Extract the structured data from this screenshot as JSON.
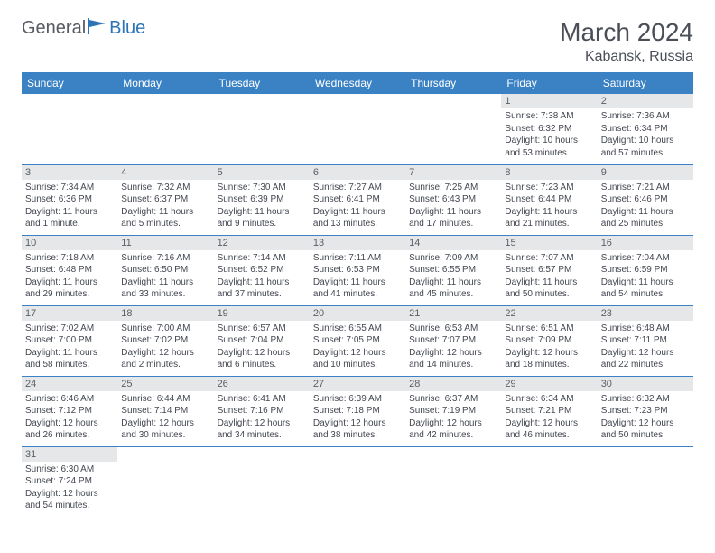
{
  "logo": {
    "text1": "General",
    "text2": "Blue"
  },
  "title": "March 2024",
  "location": "Kabansk, Russia",
  "colors": {
    "header_bg": "#3b82c4",
    "header_text": "#ffffff",
    "daynum_bg": "#e6e7e9",
    "text": "#424750",
    "title_text": "#4a4f57",
    "logo_gray": "#555a60",
    "logo_blue": "#2e74b5",
    "row_border": "#3b82c4"
  },
  "dayNames": [
    "Sunday",
    "Monday",
    "Tuesday",
    "Wednesday",
    "Thursday",
    "Friday",
    "Saturday"
  ],
  "weeks": [
    [
      {
        "n": "",
        "sr": "",
        "ss": "",
        "dl": ""
      },
      {
        "n": "",
        "sr": "",
        "ss": "",
        "dl": ""
      },
      {
        "n": "",
        "sr": "",
        "ss": "",
        "dl": ""
      },
      {
        "n": "",
        "sr": "",
        "ss": "",
        "dl": ""
      },
      {
        "n": "",
        "sr": "",
        "ss": "",
        "dl": ""
      },
      {
        "n": "1",
        "sr": "Sunrise: 7:38 AM",
        "ss": "Sunset: 6:32 PM",
        "dl": "Daylight: 10 hours and 53 minutes."
      },
      {
        "n": "2",
        "sr": "Sunrise: 7:36 AM",
        "ss": "Sunset: 6:34 PM",
        "dl": "Daylight: 10 hours and 57 minutes."
      }
    ],
    [
      {
        "n": "3",
        "sr": "Sunrise: 7:34 AM",
        "ss": "Sunset: 6:36 PM",
        "dl": "Daylight: 11 hours and 1 minute."
      },
      {
        "n": "4",
        "sr": "Sunrise: 7:32 AM",
        "ss": "Sunset: 6:37 PM",
        "dl": "Daylight: 11 hours and 5 minutes."
      },
      {
        "n": "5",
        "sr": "Sunrise: 7:30 AM",
        "ss": "Sunset: 6:39 PM",
        "dl": "Daylight: 11 hours and 9 minutes."
      },
      {
        "n": "6",
        "sr": "Sunrise: 7:27 AM",
        "ss": "Sunset: 6:41 PM",
        "dl": "Daylight: 11 hours and 13 minutes."
      },
      {
        "n": "7",
        "sr": "Sunrise: 7:25 AM",
        "ss": "Sunset: 6:43 PM",
        "dl": "Daylight: 11 hours and 17 minutes."
      },
      {
        "n": "8",
        "sr": "Sunrise: 7:23 AM",
        "ss": "Sunset: 6:44 PM",
        "dl": "Daylight: 11 hours and 21 minutes."
      },
      {
        "n": "9",
        "sr": "Sunrise: 7:21 AM",
        "ss": "Sunset: 6:46 PM",
        "dl": "Daylight: 11 hours and 25 minutes."
      }
    ],
    [
      {
        "n": "10",
        "sr": "Sunrise: 7:18 AM",
        "ss": "Sunset: 6:48 PM",
        "dl": "Daylight: 11 hours and 29 minutes."
      },
      {
        "n": "11",
        "sr": "Sunrise: 7:16 AM",
        "ss": "Sunset: 6:50 PM",
        "dl": "Daylight: 11 hours and 33 minutes."
      },
      {
        "n": "12",
        "sr": "Sunrise: 7:14 AM",
        "ss": "Sunset: 6:52 PM",
        "dl": "Daylight: 11 hours and 37 minutes."
      },
      {
        "n": "13",
        "sr": "Sunrise: 7:11 AM",
        "ss": "Sunset: 6:53 PM",
        "dl": "Daylight: 11 hours and 41 minutes."
      },
      {
        "n": "14",
        "sr": "Sunrise: 7:09 AM",
        "ss": "Sunset: 6:55 PM",
        "dl": "Daylight: 11 hours and 45 minutes."
      },
      {
        "n": "15",
        "sr": "Sunrise: 7:07 AM",
        "ss": "Sunset: 6:57 PM",
        "dl": "Daylight: 11 hours and 50 minutes."
      },
      {
        "n": "16",
        "sr": "Sunrise: 7:04 AM",
        "ss": "Sunset: 6:59 PM",
        "dl": "Daylight: 11 hours and 54 minutes."
      }
    ],
    [
      {
        "n": "17",
        "sr": "Sunrise: 7:02 AM",
        "ss": "Sunset: 7:00 PM",
        "dl": "Daylight: 11 hours and 58 minutes."
      },
      {
        "n": "18",
        "sr": "Sunrise: 7:00 AM",
        "ss": "Sunset: 7:02 PM",
        "dl": "Daylight: 12 hours and 2 minutes."
      },
      {
        "n": "19",
        "sr": "Sunrise: 6:57 AM",
        "ss": "Sunset: 7:04 PM",
        "dl": "Daylight: 12 hours and 6 minutes."
      },
      {
        "n": "20",
        "sr": "Sunrise: 6:55 AM",
        "ss": "Sunset: 7:05 PM",
        "dl": "Daylight: 12 hours and 10 minutes."
      },
      {
        "n": "21",
        "sr": "Sunrise: 6:53 AM",
        "ss": "Sunset: 7:07 PM",
        "dl": "Daylight: 12 hours and 14 minutes."
      },
      {
        "n": "22",
        "sr": "Sunrise: 6:51 AM",
        "ss": "Sunset: 7:09 PM",
        "dl": "Daylight: 12 hours and 18 minutes."
      },
      {
        "n": "23",
        "sr": "Sunrise: 6:48 AM",
        "ss": "Sunset: 7:11 PM",
        "dl": "Daylight: 12 hours and 22 minutes."
      }
    ],
    [
      {
        "n": "24",
        "sr": "Sunrise: 6:46 AM",
        "ss": "Sunset: 7:12 PM",
        "dl": "Daylight: 12 hours and 26 minutes."
      },
      {
        "n": "25",
        "sr": "Sunrise: 6:44 AM",
        "ss": "Sunset: 7:14 PM",
        "dl": "Daylight: 12 hours and 30 minutes."
      },
      {
        "n": "26",
        "sr": "Sunrise: 6:41 AM",
        "ss": "Sunset: 7:16 PM",
        "dl": "Daylight: 12 hours and 34 minutes."
      },
      {
        "n": "27",
        "sr": "Sunrise: 6:39 AM",
        "ss": "Sunset: 7:18 PM",
        "dl": "Daylight: 12 hours and 38 minutes."
      },
      {
        "n": "28",
        "sr": "Sunrise: 6:37 AM",
        "ss": "Sunset: 7:19 PM",
        "dl": "Daylight: 12 hours and 42 minutes."
      },
      {
        "n": "29",
        "sr": "Sunrise: 6:34 AM",
        "ss": "Sunset: 7:21 PM",
        "dl": "Daylight: 12 hours and 46 minutes."
      },
      {
        "n": "30",
        "sr": "Sunrise: 6:32 AM",
        "ss": "Sunset: 7:23 PM",
        "dl": "Daylight: 12 hours and 50 minutes."
      }
    ],
    [
      {
        "n": "31",
        "sr": "Sunrise: 6:30 AM",
        "ss": "Sunset: 7:24 PM",
        "dl": "Daylight: 12 hours and 54 minutes."
      },
      {
        "n": "",
        "sr": "",
        "ss": "",
        "dl": ""
      },
      {
        "n": "",
        "sr": "",
        "ss": "",
        "dl": ""
      },
      {
        "n": "",
        "sr": "",
        "ss": "",
        "dl": ""
      },
      {
        "n": "",
        "sr": "",
        "ss": "",
        "dl": ""
      },
      {
        "n": "",
        "sr": "",
        "ss": "",
        "dl": ""
      },
      {
        "n": "",
        "sr": "",
        "ss": "",
        "dl": ""
      }
    ]
  ]
}
